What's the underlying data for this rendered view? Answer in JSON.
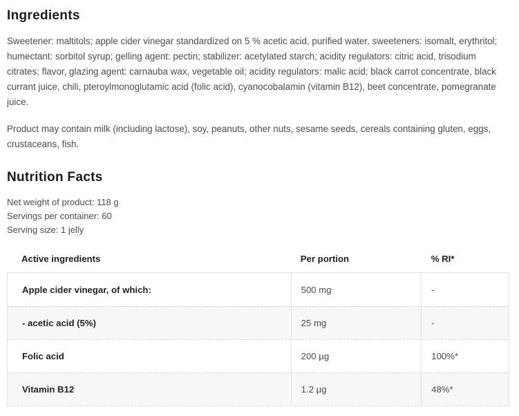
{
  "colors": {
    "heading_text": "#1b1b1b",
    "body_text": "#4c4c4c",
    "table_border": "#e3e3e3",
    "row_alt_background": "#f7f7f7"
  },
  "ingredients": {
    "title": "Ingredients",
    "paragraph1": "Sweetener: maltitols; apple cider vinegar standardized on 5 % acetic acid, purified water, sweeteners: isomalt, erythritol; humectant: sorbitol syrup; gelling agent: pectin; stabilizer: acetylated starch; acidity regulators: citric acid, trisodium citrates; flavor, glazing agent: carnauba wax, vegetable oil; acidity regulators: malic acid; black carrot concentrate, black currant juice, chili, pteroylmonoglutamic acid (folic acid), cyanocobalamin (vitamin B12), beet concentrate, pomegranate juice.",
    "paragraph2": "Product may contain milk (including lactose), soy, peanuts, other nuts, sesame seeds, cereals containing gluten, eggs, crustaceans, fish."
  },
  "nutrition": {
    "title": "Nutrition Facts",
    "net_weight": "Net weight of product: 118 g",
    "servings_per_container": "Servings per container: 60",
    "serving_size": "Serving size: 1 jelly",
    "table": {
      "headers": [
        "Active ingredients",
        "Per portion",
        "% RI*"
      ],
      "rows": [
        {
          "name": "Apple cider vinegar, of which:",
          "per_portion": "500 mg",
          "ri": "-"
        },
        {
          "name": "- acetic acid (5%)",
          "per_portion": "25 mg",
          "ri": "-"
        },
        {
          "name": "Folic acid",
          "per_portion": "200 µg",
          "ri": "100%*"
        },
        {
          "name": "Vitamin B12",
          "per_portion": "1.2 µg",
          "ri": "48%*"
        }
      ]
    }
  }
}
